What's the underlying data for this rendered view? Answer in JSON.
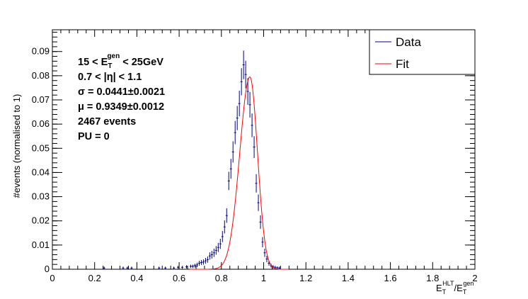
{
  "chart_data": {
    "type": "line",
    "xlabel": {
      "main": "E",
      "sub1": "T",
      "sup1": "HLT",
      "slash": "/E",
      "sub2": "T",
      "sup2": "gen"
    },
    "ylabel": "#events (normalised to 1)",
    "xlim": [
      0,
      2
    ],
    "ylim": [
      0,
      0.099
    ],
    "x_ticks": [
      0,
      0.2,
      0.4,
      0.6,
      0.8,
      1,
      1.2,
      1.4,
      1.6,
      1.8,
      2
    ],
    "x_tick_labels": [
      "0",
      "0.2",
      "0.4",
      "0.6",
      "0.8",
      "1",
      "1.2",
      "1.4",
      "1.6",
      "1.8",
      "2"
    ],
    "y_ticks": [
      0,
      0.01,
      0.02,
      0.03,
      0.04,
      0.05,
      0.06,
      0.07,
      0.08,
      0.09
    ],
    "y_tick_labels": [
      "0",
      "0.01",
      "0.02",
      "0.03",
      "0.04",
      "0.05",
      "0.06",
      "0.07",
      "0.08",
      "0.09"
    ],
    "legend": {
      "position": "top-right",
      "entries": [
        "Data",
        "Fit"
      ]
    },
    "colors": {
      "data": "#00008b",
      "fit": "#ff0000",
      "axis": "#000000"
    },
    "annotations": {
      "line1": {
        "pre": "15 < E",
        "sub": "T",
        "sup": "gen",
        "post": " < 25GeV"
      },
      "line2": "0.7 < |η| < 1.1",
      "line3": "σ = 0.0441±0.0021",
      "line4": "μ = 0.9349±0.0012",
      "line5": "2467 events",
      "line6": "PU = 0"
    },
    "series": [
      {
        "name": "Data",
        "style": "points-with-errors",
        "x": [
          0.245,
          0.335,
          0.355,
          0.375,
          0.505,
          0.535,
          0.575,
          0.595,
          0.615,
          0.635,
          0.655,
          0.665,
          0.675,
          0.685,
          0.695,
          0.705,
          0.715,
          0.725,
          0.735,
          0.745,
          0.755,
          0.765,
          0.775,
          0.785,
          0.795,
          0.805,
          0.815,
          0.825,
          0.835,
          0.845,
          0.855,
          0.865,
          0.875,
          0.885,
          0.895,
          0.905,
          0.915,
          0.925,
          0.935,
          0.945,
          0.955,
          0.965,
          0.975,
          0.985,
          0.995,
          1.005,
          1.015,
          1.025,
          1.035,
          1.045,
          1.055,
          1.065,
          1.075
        ],
        "y": [
          0.0005,
          0.0005,
          0.0005,
          0.0005,
          0.0005,
          0.0005,
          0.0005,
          0.0008,
          0.0008,
          0.001,
          0.0012,
          0.0012,
          0.0015,
          0.0018,
          0.0025,
          0.0028,
          0.003,
          0.0035,
          0.004,
          0.0055,
          0.006,
          0.0068,
          0.0078,
          0.009,
          0.0105,
          0.0135,
          0.0175,
          0.0222,
          0.0365,
          0.0415,
          0.0485,
          0.0565,
          0.0625,
          0.0685,
          0.0775,
          0.0845,
          0.0805,
          0.0735,
          0.068,
          0.0595,
          0.0505,
          0.0355,
          0.0275,
          0.0195,
          0.0112,
          0.0068,
          0.0042,
          0.0025,
          0.0015,
          0.001,
          0.0008,
          0.0006,
          0.0005
        ],
        "err": [
          0.0005,
          0.0005,
          0.0005,
          0.0005,
          0.0005,
          0.0005,
          0.0005,
          0.0006,
          0.0006,
          0.0007,
          0.0007,
          0.0007,
          0.0008,
          0.0009,
          0.001,
          0.001,
          0.0011,
          0.0012,
          0.0013,
          0.0015,
          0.0016,
          0.0017,
          0.0018,
          0.0019,
          0.0021,
          0.0023,
          0.0027,
          0.003,
          0.0038,
          0.0041,
          0.0044,
          0.0048,
          0.005,
          0.0053,
          0.0056,
          0.0059,
          0.0057,
          0.0055,
          0.0053,
          0.0049,
          0.0045,
          0.0038,
          0.0034,
          0.0028,
          0.0021,
          0.0017,
          0.0013,
          0.001,
          0.0008,
          0.0007,
          0.0006,
          0.0005,
          0.0005
        ]
      },
      {
        "name": "Fit",
        "style": "line",
        "peak": 0.0795,
        "mean": 0.9349,
        "sigma_left": 0.048,
        "sigma_right": 0.036,
        "x_range": [
          0.65,
          1.12
        ]
      }
    ]
  }
}
